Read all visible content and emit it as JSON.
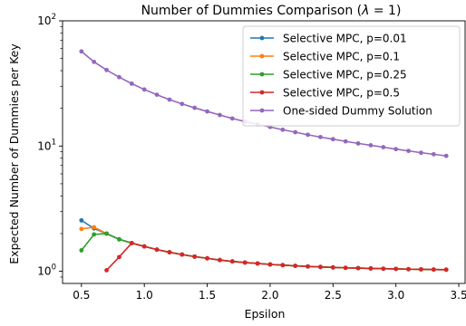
{
  "chart_data": {
    "type": "line",
    "title_main": "Number of Dummies Comparison (",
    "title_symbol": "λ",
    "title_rest": " = 1)",
    "xlabel": "Epsilon",
    "ylabel": "Expected Number of Dummies per Key",
    "xlim": [
      0.35,
      3.55
    ],
    "ylim": [
      0.8,
      100
    ],
    "yscale": "log",
    "x_ticks": [
      0.5,
      1.0,
      1.5,
      2.0,
      2.5,
      3.0,
      3.5
    ],
    "x_tick_labels": [
      "0.5",
      "1.0",
      "1.5",
      "2.0",
      "2.5",
      "3.0",
      "3.5"
    ],
    "y_ticks": [
      1,
      10,
      100
    ],
    "y_tick_base": "10",
    "y_tick_exponents": [
      "0",
      "1",
      "2"
    ],
    "legend_position": "upper right",
    "series": [
      {
        "name": "Selective MPC, p=0.01",
        "color": "#1f77b4",
        "x": [
          0.5,
          0.6,
          0.7,
          0.8,
          0.9,
          1.0,
          1.1,
          1.2,
          1.3,
          1.4,
          1.5,
          1.6,
          1.7,
          1.8,
          1.9,
          2.0,
          2.1,
          2.2,
          2.3,
          2.4,
          2.5,
          2.6,
          2.7,
          2.8,
          2.9,
          3.0,
          3.1,
          3.2,
          3.3,
          3.4
        ],
        "y": [
          2.55,
          2.2,
          2.0,
          1.8,
          1.68,
          1.58,
          1.49,
          1.42,
          1.36,
          1.31,
          1.27,
          1.23,
          1.2,
          1.175,
          1.155,
          1.135,
          1.12,
          1.105,
          1.093,
          1.083,
          1.074,
          1.066,
          1.06,
          1.054,
          1.049,
          1.045,
          1.04,
          1.036,
          1.033,
          1.03
        ]
      },
      {
        "name": "Selective MPC, p=0.1",
        "color": "#ff7f0e",
        "x": [
          0.5,
          0.6,
          0.7,
          0.8,
          0.9,
          1.0,
          1.1,
          1.2,
          1.3,
          1.4,
          1.5,
          1.6,
          1.7,
          1.8,
          1.9,
          2.0,
          2.1,
          2.2,
          2.3,
          2.4,
          2.5,
          2.6,
          2.7,
          2.8,
          2.9,
          3.0,
          3.1,
          3.2,
          3.3,
          3.4
        ],
        "y": [
          2.18,
          2.25,
          2.0,
          1.8,
          1.68,
          1.58,
          1.49,
          1.42,
          1.36,
          1.31,
          1.27,
          1.23,
          1.2,
          1.175,
          1.155,
          1.135,
          1.12,
          1.105,
          1.093,
          1.083,
          1.074,
          1.066,
          1.06,
          1.054,
          1.049,
          1.045,
          1.04,
          1.036,
          1.033,
          1.03
        ]
      },
      {
        "name": "Selective MPC, p=0.25",
        "color": "#2ca02c",
        "x": [
          0.5,
          0.6,
          0.7,
          0.8,
          0.9,
          1.0,
          1.1,
          1.2,
          1.3,
          1.4,
          1.5,
          1.6,
          1.7,
          1.8,
          1.9,
          2.0,
          2.1,
          2.2,
          2.3,
          2.4,
          2.5,
          2.6,
          2.7,
          2.8,
          2.9,
          3.0,
          3.1,
          3.2,
          3.3,
          3.4
        ],
        "y": [
          1.47,
          1.97,
          2.0,
          1.8,
          1.68,
          1.58,
          1.49,
          1.42,
          1.36,
          1.31,
          1.27,
          1.23,
          1.2,
          1.175,
          1.155,
          1.135,
          1.12,
          1.105,
          1.093,
          1.083,
          1.074,
          1.066,
          1.06,
          1.054,
          1.049,
          1.045,
          1.04,
          1.036,
          1.033,
          1.03
        ]
      },
      {
        "name": "Selective MPC, p=0.5",
        "color": "#d62728",
        "x": [
          0.7,
          0.8,
          0.9,
          1.0,
          1.1,
          1.2,
          1.3,
          1.4,
          1.5,
          1.6,
          1.7,
          1.8,
          1.9,
          2.0,
          2.1,
          2.2,
          2.3,
          2.4,
          2.5,
          2.6,
          2.7,
          2.8,
          2.9,
          3.0,
          3.1,
          3.2,
          3.3,
          3.4
        ],
        "y": [
          1.02,
          1.3,
          1.68,
          1.58,
          1.49,
          1.42,
          1.36,
          1.31,
          1.27,
          1.23,
          1.2,
          1.175,
          1.155,
          1.135,
          1.12,
          1.105,
          1.093,
          1.083,
          1.074,
          1.066,
          1.06,
          1.054,
          1.049,
          1.045,
          1.04,
          1.036,
          1.033,
          1.03
        ]
      },
      {
        "name": "One-sided Dummy Solution",
        "color": "#9467bd",
        "x": [
          0.5,
          0.6,
          0.7,
          0.8,
          0.9,
          1.0,
          1.1,
          1.2,
          1.3,
          1.4,
          1.5,
          1.6,
          1.7,
          1.8,
          1.9,
          2.0,
          2.1,
          2.2,
          2.3,
          2.4,
          2.5,
          2.6,
          2.7,
          2.8,
          2.9,
          3.0,
          3.1,
          3.2,
          3.3,
          3.4
        ],
        "y": [
          57,
          47,
          40.5,
          35.5,
          31.5,
          28.3,
          25.7,
          23.5,
          21.7,
          20.2,
          18.9,
          17.7,
          16.6,
          15.7,
          14.9,
          14.2,
          13.5,
          12.9,
          12.3,
          11.8,
          11.35,
          10.9,
          10.5,
          10.15,
          9.8,
          9.45,
          9.15,
          8.85,
          8.6,
          8.35
        ]
      }
    ]
  }
}
